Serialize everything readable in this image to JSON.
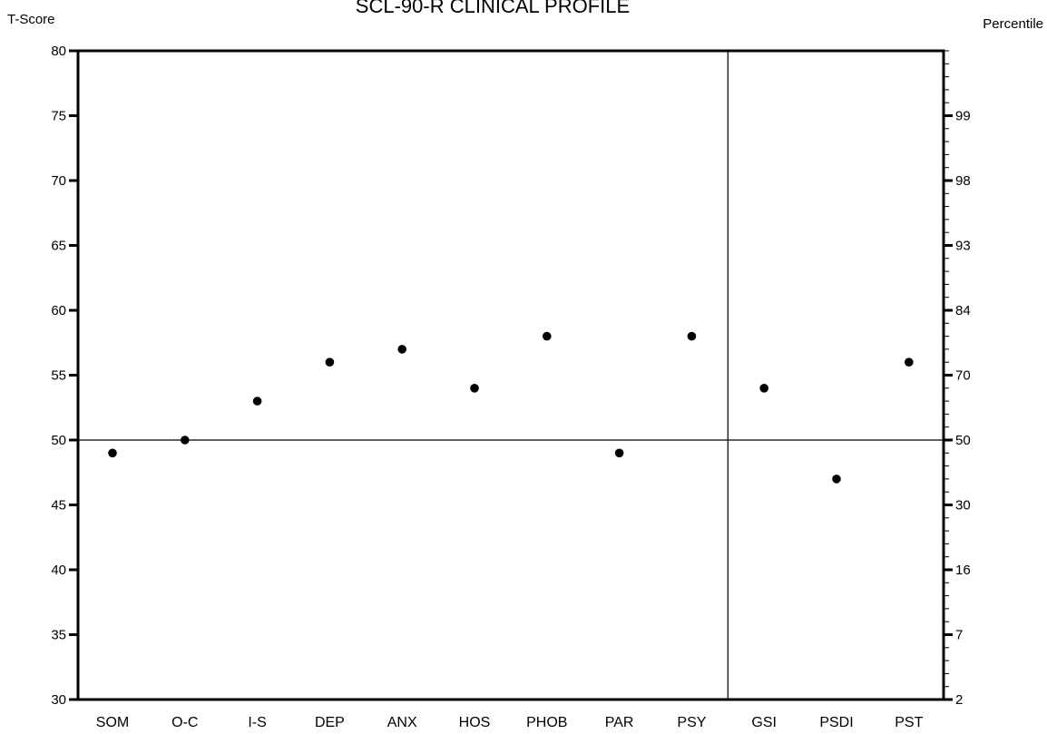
{
  "chart_data": {
    "type": "scatter",
    "title": "SCL-90-R CLINICAL PROFILE",
    "left_axis_label": "T-Score",
    "right_axis_label": "Percentile",
    "categories": [
      "SOM",
      "O-C",
      "I-S",
      "DEP",
      "ANX",
      "HOS",
      "PHOB",
      "PAR",
      "PSY",
      "GSI",
      "PSDI",
      "PST"
    ],
    "values": [
      49,
      50,
      53,
      56,
      57,
      54,
      58,
      49,
      58,
      54,
      47,
      56
    ],
    "ylim": [
      30,
      80
    ],
    "y_ticks": [
      30,
      35,
      40,
      45,
      50,
      55,
      60,
      65,
      70,
      75,
      80
    ],
    "percentile_ticks": [
      {
        "t": 30,
        "label": "2"
      },
      {
        "t": 35,
        "label": "7"
      },
      {
        "t": 40,
        "label": "16"
      },
      {
        "t": 45,
        "label": "30"
      },
      {
        "t": 50,
        "label": "50"
      },
      {
        "t": 55,
        "label": "70"
      },
      {
        "t": 60,
        "label": "84"
      },
      {
        "t": 65,
        "label": "93"
      },
      {
        "t": 70,
        "label": "98"
      },
      {
        "t": 75,
        "label": "99"
      }
    ],
    "reference_line_y": 50,
    "divider_after_category": "PSY",
    "grid": false,
    "legend": "none",
    "point_color": "#000000"
  }
}
